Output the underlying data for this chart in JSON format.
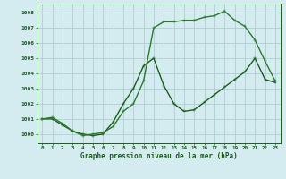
{
  "title": "Graphe pression niveau de la mer (hPa)",
  "background_color": "#d4ecf0",
  "grid_color": "#b0cdd4",
  "line_color_1": "#1a5e1a",
  "line_color_2": "#2a7a2a",
  "line_color_3": "#1a5e1a",
  "xlabel_color": "#1a5c1a",
  "ylabel_ticks": [
    1000,
    1001,
    1002,
    1003,
    1004,
    1005,
    1006,
    1007,
    1008
  ],
  "xlim": [
    -0.5,
    23.5
  ],
  "ylim": [
    999.4,
    1008.6
  ],
  "series1_x": [
    0,
    1,
    2,
    3,
    4,
    5,
    6,
    7,
    8,
    9,
    10,
    11,
    12,
    13,
    14,
    15,
    16,
    17,
    18,
    19,
    20,
    21,
    22,
    23
  ],
  "series1_y": [
    1001.0,
    1001.0,
    1000.6,
    1000.2,
    1000.0,
    999.9,
    1000.0,
    1000.8,
    1002.0,
    1003.0,
    1004.5,
    1005.0,
    1003.2,
    1002.0,
    1001.5,
    1001.6,
    1002.1,
    1002.6,
    1003.1,
    1003.6,
    1004.1,
    1005.0,
    1003.6,
    1003.4
  ],
  "series2_x": [
    0,
    1,
    2,
    3,
    4,
    5,
    6,
    7,
    8,
    9,
    10,
    11,
    12,
    13,
    14,
    15,
    16,
    17,
    18,
    19,
    20,
    21,
    22,
    23
  ],
  "series2_y": [
    1001.0,
    1001.1,
    1000.7,
    1000.2,
    999.9,
    1000.0,
    1000.1,
    1000.5,
    1001.5,
    1002.0,
    1003.5,
    1007.0,
    1007.4,
    1007.4,
    1007.5,
    1007.5,
    1007.7,
    1007.8,
    1008.1,
    1007.5,
    1007.1,
    1006.2,
    1004.8,
    1003.5
  ],
  "marker_size": 2.5,
  "line_width": 1.0
}
